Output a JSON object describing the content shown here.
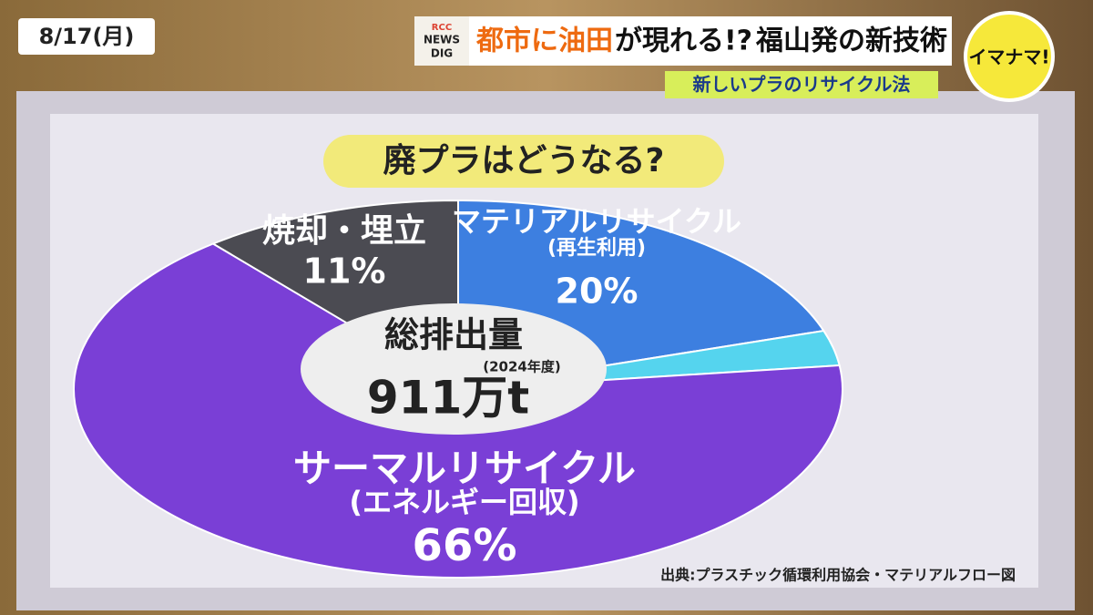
{
  "header": {
    "date": "8/17(月)",
    "logo_lines": [
      "RCC",
      "NEWS",
      "DIG"
    ],
    "headline": [
      "都市に油田",
      "が現れる!?",
      "福山発の新技術"
    ],
    "subheadline": "新しいプラのリサイクル法",
    "show": "イマナマ!"
  },
  "chart_data": {
    "type": "pie",
    "title": "廃プラはどうなる?",
    "categories": [
      "マテリアルリサイクル",
      null,
      "サーマルリサイクル",
      "焼却・埋立"
    ],
    "sublabels": [
      "(再生利用)",
      null,
      "(エネルギー回収)",
      null
    ],
    "values": [
      20,
      3,
      66,
      11
    ],
    "value_labels": [
      "20%",
      null,
      "66%",
      "11%"
    ],
    "colors": [
      "#3d7fe0",
      "#55d4ee",
      "#7a3fd6",
      "#4b4b52"
    ],
    "center_label": "総排出量",
    "center_note": "(2024年度)",
    "center_value": "911万t",
    "source": "出典:プラスチック循環利用協会・マテリアルフロー図"
  }
}
